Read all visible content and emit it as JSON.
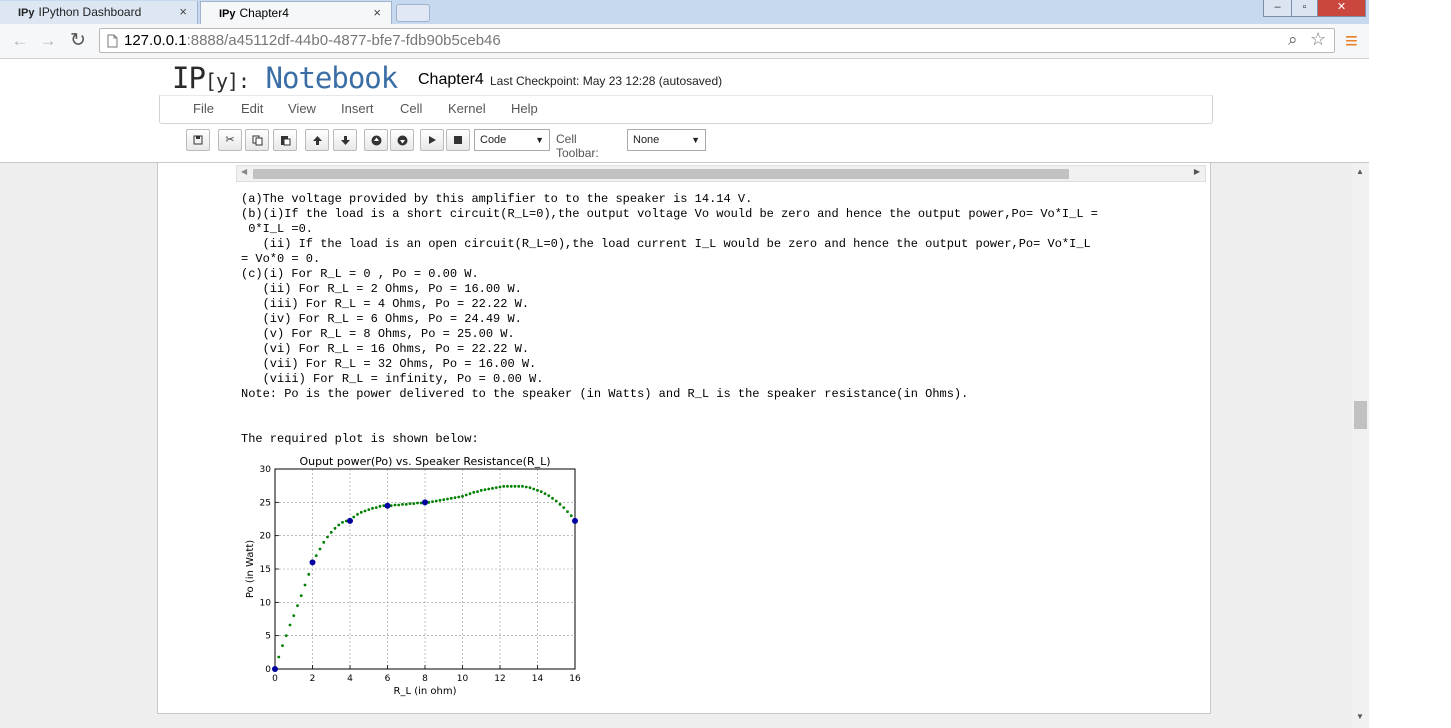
{
  "browser": {
    "tabs": [
      {
        "icon": "IPy",
        "label": "IPython Dashboard",
        "close": "×"
      },
      {
        "icon": "IPy",
        "label": "Chapter4",
        "close": "×"
      }
    ],
    "window_buttons": {
      "minimize": "–",
      "maximize": "▫",
      "close": "✕"
    },
    "url_host": "127.0.0.1",
    "url_rest": ":8888/a45112df-44b0-4877-bfe7-fdb90b5ceb46",
    "nav": {
      "back": "←",
      "forward": "→",
      "reload": "↻"
    },
    "icons": {
      "page": "page-icon",
      "search": "⌕",
      "star": "☆",
      "menu": "≡"
    }
  },
  "notebook": {
    "logo_ip": "IP",
    "logo_y": "[y]:",
    "logo_nb": " Notebook",
    "name": "Chapter4",
    "checkpoint": "Last Checkpoint: May 23 12:28 (autosaved)",
    "menu": [
      "File",
      "Edit",
      "View",
      "Insert",
      "Cell",
      "Kernel",
      "Help"
    ],
    "toolbar": {
      "cell_type": "Code",
      "cell_toolbar_label": "Cell Toolbar:",
      "cell_toolbar_value": "None"
    }
  },
  "output_lines": [
    "(a)The voltage provided by this amplifier to to the speaker is 14.14 V.",
    "(b)(i)If the load is a short circuit(R_L=0),the output voltage Vo would be zero and hence the output power,Po= Vo*I_L =",
    " 0*I_L =0.",
    "   (ii) If the load is an open circuit(R_L=0),the load current I_L would be zero and hence the output power,Po= Vo*I_L",
    "= Vo*0 = 0.",
    "(c)(i) For R_L = 0 , Po = 0.00 W.",
    "   (ii) For R_L = 2 Ohms, Po = 16.00 W.",
    "   (iii) For R_L = 4 Ohms, Po = 22.22 W.",
    "   (iv) For R_L = 6 Ohms, Po = 24.49 W.",
    "   (v) For R_L = 8 Ohms, Po = 25.00 W.",
    "   (vi) For R_L = 16 Ohms, Po = 22.22 W.",
    "   (vii) For R_L = 32 Ohms, Po = 16.00 W.",
    "   (viii) For R_L = infinity, Po = 0.00 W.",
    "Note: Po is the power delivered to the speaker (in Watts) and R_L is the speaker resistance(in Ohms).",
    "",
    "",
    "The required plot is shown below:"
  ],
  "chart_data": {
    "type": "scatter",
    "title": "Ouput power(Po) vs. Speaker Resistance(R_L)",
    "xlabel": "R_L (in ohm)",
    "ylabel": "Po (in Watt)",
    "xlim": [
      0,
      16
    ],
    "ylim": [
      0,
      30
    ],
    "xticks": [
      0,
      2,
      4,
      6,
      8,
      10,
      12,
      14,
      16
    ],
    "yticks": [
      0,
      5,
      10,
      15,
      20,
      25,
      30
    ],
    "grid": true,
    "series": [
      {
        "marker": "small-dot",
        "color": "#008000",
        "x": [
          0,
          0.2,
          0.4,
          0.6,
          0.8,
          1.0,
          1.2,
          1.4,
          1.6,
          1.8,
          2.0,
          2.2,
          2.4,
          2.6,
          2.8,
          3.0,
          3.2,
          3.4,
          3.6,
          3.8,
          4.0,
          4.2,
          4.4,
          4.6,
          4.8,
          5.0,
          5.2,
          5.4,
          5.6,
          5.8,
          6.0,
          6.2,
          6.4,
          6.6,
          6.8,
          7.0,
          7.2,
          7.4,
          7.6,
          7.8,
          8.0,
          8.2,
          8.4,
          8.6,
          8.8,
          9.0,
          9.2,
          9.4,
          9.6,
          9.8,
          10.0,
          10.2,
          10.4,
          10.6,
          10.8,
          11.0,
          11.2,
          11.4,
          11.6,
          11.8,
          12.0,
          12.2,
          12.4,
          12.6,
          12.8,
          13.0,
          13.2,
          13.4,
          13.6,
          13.8,
          14.0,
          14.2,
          14.4,
          14.6,
          14.8,
          15.0,
          15.2,
          15.4,
          15.6,
          15.8,
          16.0
        ],
        "y": [
          0,
          1.8,
          3.5,
          5.0,
          6.6,
          8.0,
          9.5,
          11.0,
          12.6,
          14.2,
          15.8,
          17.0,
          18.0,
          19.0,
          19.8,
          20.5,
          21.1,
          21.6,
          22.0,
          22.2,
          22.4,
          22.8,
          23.2,
          23.5,
          23.7,
          23.9,
          24.1,
          24.2,
          24.4,
          24.5,
          24.5,
          24.5,
          24.6,
          24.6,
          24.7,
          24.7,
          24.8,
          24.8,
          24.9,
          24.9,
          25.0,
          25.0,
          25.1,
          25.2,
          25.3,
          25.4,
          25.5,
          25.6,
          25.7,
          25.8,
          25.9,
          26.1,
          26.3,
          26.5,
          26.6,
          26.8,
          26.9,
          27.0,
          27.1,
          27.2,
          27.3,
          27.4,
          27.4,
          27.4,
          27.4,
          27.4,
          27.4,
          27.3,
          27.2,
          27.0,
          26.8,
          26.6,
          26.3,
          26.0,
          25.6,
          25.2,
          24.7,
          24.2,
          23.6,
          23.0,
          22.3
        ]
      },
      {
        "marker": "large-dot",
        "color": "#0000a0",
        "x": [
          0,
          2,
          4,
          6,
          8,
          16
        ],
        "y": [
          0,
          16.0,
          22.22,
          24.49,
          25.0,
          22.22
        ]
      }
    ]
  }
}
